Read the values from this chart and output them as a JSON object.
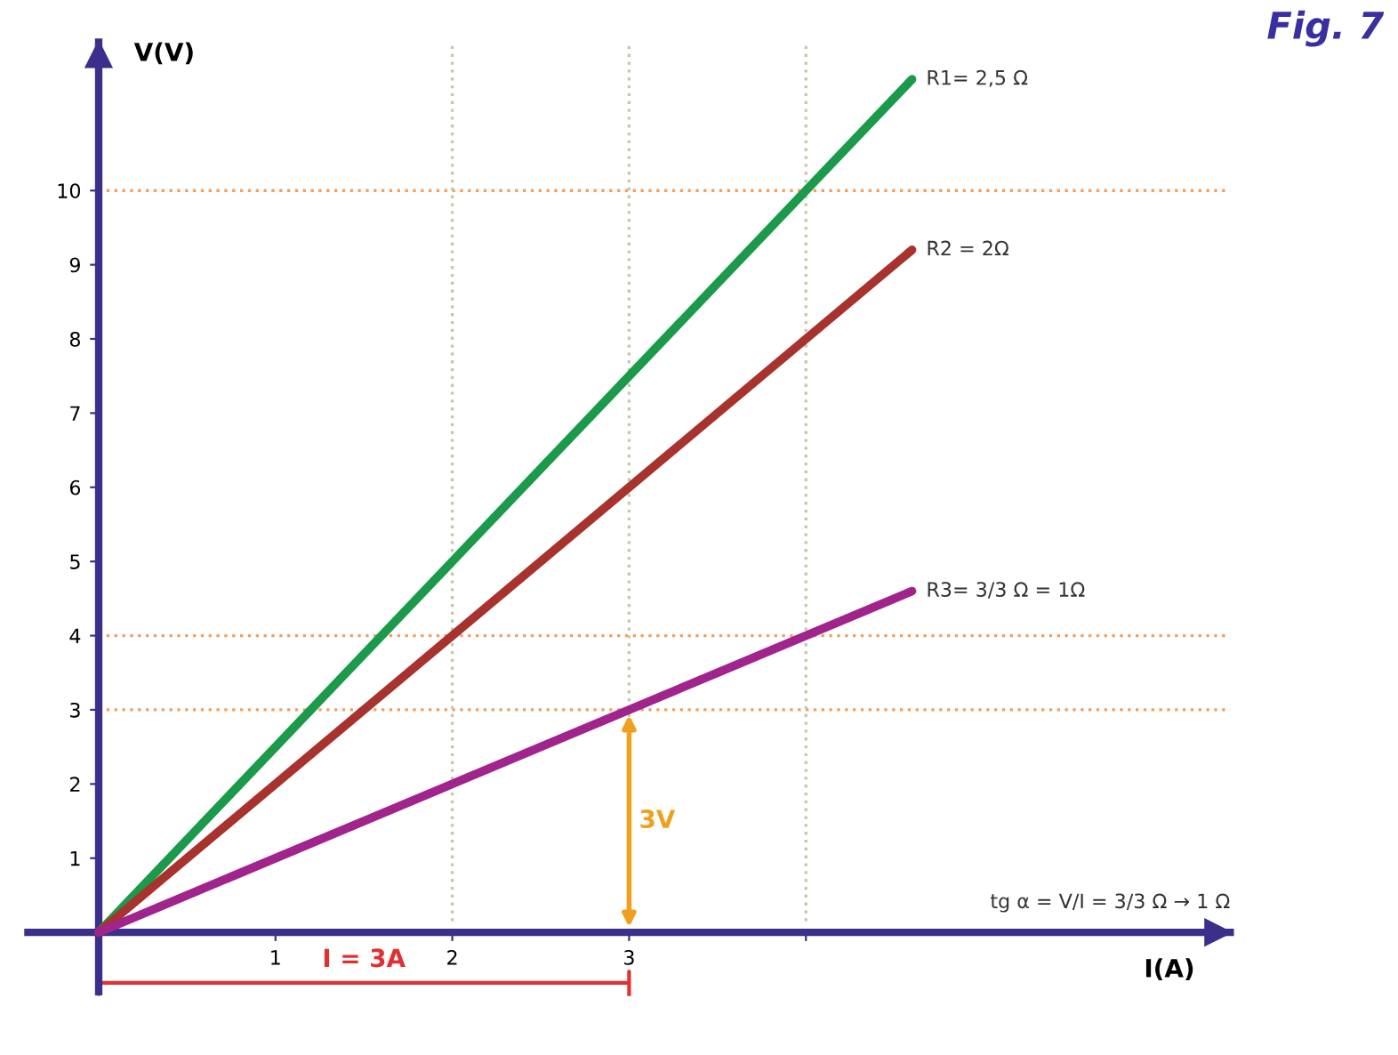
{
  "chart_data": {
    "type": "line",
    "title": "Fig. 7",
    "xlabel": "I(A)",
    "ylabel": "V(V)",
    "x": [
      0,
      4.6
    ],
    "series": [
      {
        "name": "R1= 2,5 Ω",
        "color": "#1a9a4a",
        "values": [
          0,
          11.5
        ]
      },
      {
        "name": "R2 = 2Ω",
        "color": "#a8322e",
        "values": [
          0,
          9.2
        ]
      },
      {
        "name": "R3= 3/3 Ω = 1Ω",
        "color": "#a0248c",
        "values": [
          0,
          4.6
        ]
      }
    ],
    "xlim": [
      -0.4,
      6.4
    ],
    "ylim": [
      -0.8,
      12
    ],
    "xticks": [
      1,
      2,
      3,
      {
        "value": 4,
        "label": null
      }
    ],
    "yticks": [
      1,
      2,
      3,
      4,
      5,
      6,
      7,
      8,
      9,
      10
    ],
    "ref_lines": [
      {
        "axis": "y",
        "value": 10,
        "color": "#f0a060",
        "line_style": "dotted"
      },
      {
        "axis": "y",
        "value": 4,
        "color": "#f0a060",
        "line_style": "dotted"
      },
      {
        "axis": "y",
        "value": 3,
        "color": "#f0a060",
        "line_style": "dotted"
      },
      {
        "axis": "x",
        "value": 2,
        "color": "#c8c8a8",
        "line_style": "dotted"
      },
      {
        "axis": "x",
        "value": 3,
        "color": "#c8c8a8",
        "line_style": "dotted"
      },
      {
        "axis": "x",
        "value": 4,
        "color": "#c8c8a8",
        "line_style": "dotted"
      }
    ],
    "annotations": [
      {
        "text": "3V",
        "x": 3,
        "y": 1.5
      },
      "I = 3A",
      "tg α = V/I = 3/3 Ω → 1 Ω"
    ],
    "grid": false,
    "legend": false,
    "marker": "none",
    "line_style": "solid"
  }
}
